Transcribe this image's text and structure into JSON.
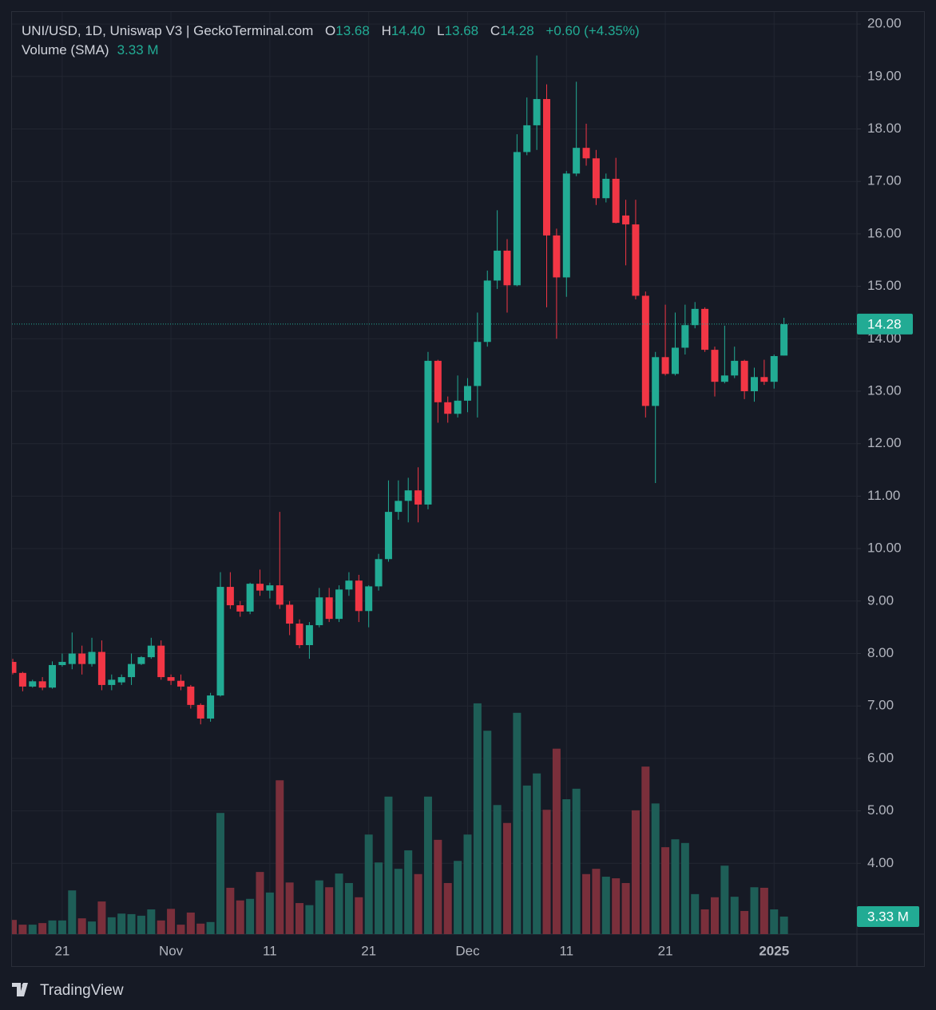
{
  "header": {
    "symbol": "UNI/USD, 1D, Uniswap V3 | GeckoTerminal.com",
    "ohlc": [
      {
        "label": "O",
        "value": "13.68"
      },
      {
        "label": "H",
        "value": "14.40"
      },
      {
        "label": "L",
        "value": "13.68"
      },
      {
        "label": "C",
        "value": "14.28"
      }
    ],
    "change": "+0.60 (+4.35%)",
    "volume_label": "Volume (SMA)",
    "volume_value": "3.33 M"
  },
  "chart_data": {
    "type": "candlestick",
    "categories": [
      null,
      null,
      null,
      null,
      null,
      "21",
      null,
      null,
      null,
      null,
      null,
      null,
      null,
      null,
      null,
      null,
      "Nov",
      null,
      null,
      null,
      null,
      null,
      null,
      null,
      null,
      null,
      "11",
      null,
      null,
      null,
      null,
      null,
      null,
      null,
      null,
      null,
      "21",
      null,
      null,
      null,
      null,
      null,
      null,
      null,
      null,
      null,
      "Dec",
      null,
      null,
      null,
      null,
      null,
      null,
      null,
      null,
      null,
      "11",
      null,
      null,
      null,
      null,
      null,
      null,
      null,
      null,
      null,
      "21",
      null,
      null,
      null,
      null,
      null,
      null,
      null,
      null,
      null,
      null,
      "2025",
      null
    ],
    "open": [
      7.84,
      7.63,
      7.37,
      7.47,
      7.35,
      7.78,
      7.8,
      8.0,
      7.8,
      8.03,
      7.4,
      7.45,
      7.55,
      7.8,
      7.93,
      8.15,
      7.55,
      7.48,
      7.37,
      7.02,
      6.76,
      7.2,
      9.27,
      8.92,
      8.8,
      9.33,
      9.2,
      9.3,
      8.93,
      8.57,
      8.16,
      8.54,
      9.07,
      8.66,
      9.22,
      9.39,
      8.81,
      9.28,
      9.8,
      10.7,
      10.91,
      11.11,
      10.84,
      13.58,
      12.79,
      12.57,
      12.82,
      13.1,
      13.94,
      15.11,
      15.68,
      15.02,
      17.56,
      18.07,
      18.57,
      15.97,
      15.17,
      17.15,
      17.64,
      17.44,
      16.68,
      17.05,
      16.35,
      16.18,
      14.82,
      12.72,
      13.65,
      13.33,
      13.83,
      14.26,
      14.57,
      13.79,
      13.18,
      13.3,
      13.58,
      13.0,
      13.27,
      13.18,
      13.68
    ],
    "high": [
      7.9,
      7.65,
      7.5,
      7.55,
      7.85,
      8.0,
      8.4,
      8.15,
      8.3,
      8.25,
      7.6,
      7.6,
      8.0,
      7.95,
      8.3,
      8.25,
      7.6,
      7.6,
      7.4,
      7.05,
      7.25,
      9.55,
      9.55,
      9.0,
      9.35,
      9.6,
      9.35,
      10.7,
      9.0,
      8.65,
      8.6,
      9.25,
      9.25,
      9.3,
      9.55,
      9.5,
      9.3,
      9.9,
      11.3,
      11.3,
      11.35,
      11.55,
      13.75,
      13.6,
      12.9,
      13.3,
      13.25,
      14.5,
      15.3,
      16.45,
      15.9,
      17.9,
      18.6,
      19.4,
      18.85,
      16.1,
      17.2,
      18.9,
      18.1,
      17.6,
      17.15,
      17.45,
      16.65,
      16.65,
      14.9,
      13.75,
      14.65,
      14.5,
      14.65,
      14.7,
      14.6,
      13.85,
      14.25,
      13.85,
      13.6,
      13.45,
      13.6,
      13.7,
      14.4
    ],
    "low": [
      7.6,
      7.28,
      7.35,
      7.3,
      7.33,
      7.75,
      7.7,
      7.6,
      7.75,
      7.3,
      7.3,
      7.4,
      7.4,
      7.78,
      7.9,
      7.5,
      7.4,
      7.3,
      6.95,
      6.65,
      6.7,
      7.18,
      8.85,
      8.7,
      8.75,
      9.1,
      9.05,
      8.85,
      8.35,
      8.1,
      7.9,
      8.5,
      8.6,
      8.6,
      9.1,
      8.6,
      8.5,
      9.2,
      9.75,
      10.55,
      10.5,
      10.5,
      10.75,
      12.4,
      12.4,
      12.5,
      12.6,
      12.5,
      13.85,
      14.95,
      14.5,
      15.0,
      17.5,
      17.6,
      14.6,
      14.0,
      14.8,
      17.1,
      17.3,
      16.55,
      16.6,
      16.2,
      15.4,
      14.75,
      12.5,
      11.25,
      13.3,
      13.3,
      13.7,
      14.2,
      13.75,
      12.9,
      13.15,
      13.25,
      12.85,
      12.8,
      13.12,
      13.05,
      13.68
    ],
    "close": [
      7.63,
      7.37,
      7.47,
      7.35,
      7.78,
      7.84,
      8.0,
      7.8,
      8.03,
      7.4,
      7.5,
      7.55,
      7.8,
      7.93,
      8.15,
      7.55,
      7.48,
      7.37,
      7.02,
      6.76,
      7.2,
      9.27,
      8.92,
      8.8,
      9.33,
      9.2,
      9.3,
      8.93,
      8.57,
      8.16,
      8.54,
      9.07,
      8.66,
      9.22,
      9.39,
      8.81,
      9.28,
      9.8,
      10.7,
      10.91,
      11.11,
      10.84,
      13.58,
      12.79,
      12.57,
      12.82,
      13.1,
      13.94,
      15.11,
      15.68,
      15.02,
      17.56,
      18.07,
      18.57,
      15.97,
      15.17,
      17.15,
      17.64,
      17.44,
      16.68,
      17.05,
      16.21,
      16.18,
      14.82,
      12.72,
      13.65,
      13.33,
      13.83,
      14.26,
      14.57,
      13.79,
      13.18,
      13.3,
      13.58,
      13.0,
      13.27,
      13.18,
      13.67,
      14.28
    ],
    "volume": [
      2.7,
      1.8,
      1.8,
      2.1,
      2.6,
      2.6,
      8.3,
      3.0,
      2.4,
      6.2,
      3.2,
      3.9,
      3.8,
      3.5,
      4.7,
      2.6,
      4.8,
      1.8,
      4.1,
      2.0,
      2.3,
      23.0,
      8.8,
      6.4,
      6.7,
      11.8,
      7.9,
      29.2,
      9.8,
      5.9,
      5.5,
      10.2,
      8.9,
      11.5,
      9.7,
      7.0,
      18.9,
      13.6,
      26.1,
      12.4,
      15.9,
      11.4,
      26.1,
      17.9,
      9.7,
      13.9,
      18.9,
      43.8,
      38.6,
      24.5,
      21.1,
      42.0,
      28.2,
      30.5,
      23.6,
      35.2,
      25.6,
      27.6,
      11.4,
      12.4,
      10.9,
      10.6,
      9.7,
      23.5,
      31.8,
      24.8,
      16.5,
      18.0,
      17.3,
      7.6,
      4.7,
      7.0,
      13.0,
      7.1,
      4.4,
      8.9,
      8.8,
      4.7,
      3.33
    ],
    "ylim": [
      2.65,
      20.23
    ],
    "yticks": [
      {
        "value": 4,
        "label": "4.00"
      },
      {
        "value": 5,
        "label": "5.00"
      },
      {
        "value": 6,
        "label": "6.00"
      },
      {
        "value": 7,
        "label": "7.00"
      },
      {
        "value": 8,
        "label": "8.00"
      },
      {
        "value": 9,
        "label": "9.00"
      },
      {
        "value": 10,
        "label": "10.00"
      },
      {
        "value": 11,
        "label": "11.00"
      },
      {
        "value": 12,
        "label": "12.00"
      },
      {
        "value": 13,
        "label": "13.00"
      },
      {
        "value": 14,
        "label": "14.00"
      },
      {
        "value": 15,
        "label": "15.00"
      },
      {
        "value": 16,
        "label": "16.00"
      },
      {
        "value": 17,
        "label": "17.00"
      },
      {
        "value": 18,
        "label": "18.00"
      },
      {
        "value": 19,
        "label": "19.00"
      },
      {
        "value": 20,
        "label": "20.00"
      }
    ],
    "volume_lim": [
      0,
      175
    ],
    "grid": true,
    "up_color": "#22ab94",
    "down_color": "#f23645",
    "volume_up_color": "#1e5e57",
    "volume_down_color": "#7a2f3b"
  },
  "footer": {
    "brand": "TradingView"
  }
}
